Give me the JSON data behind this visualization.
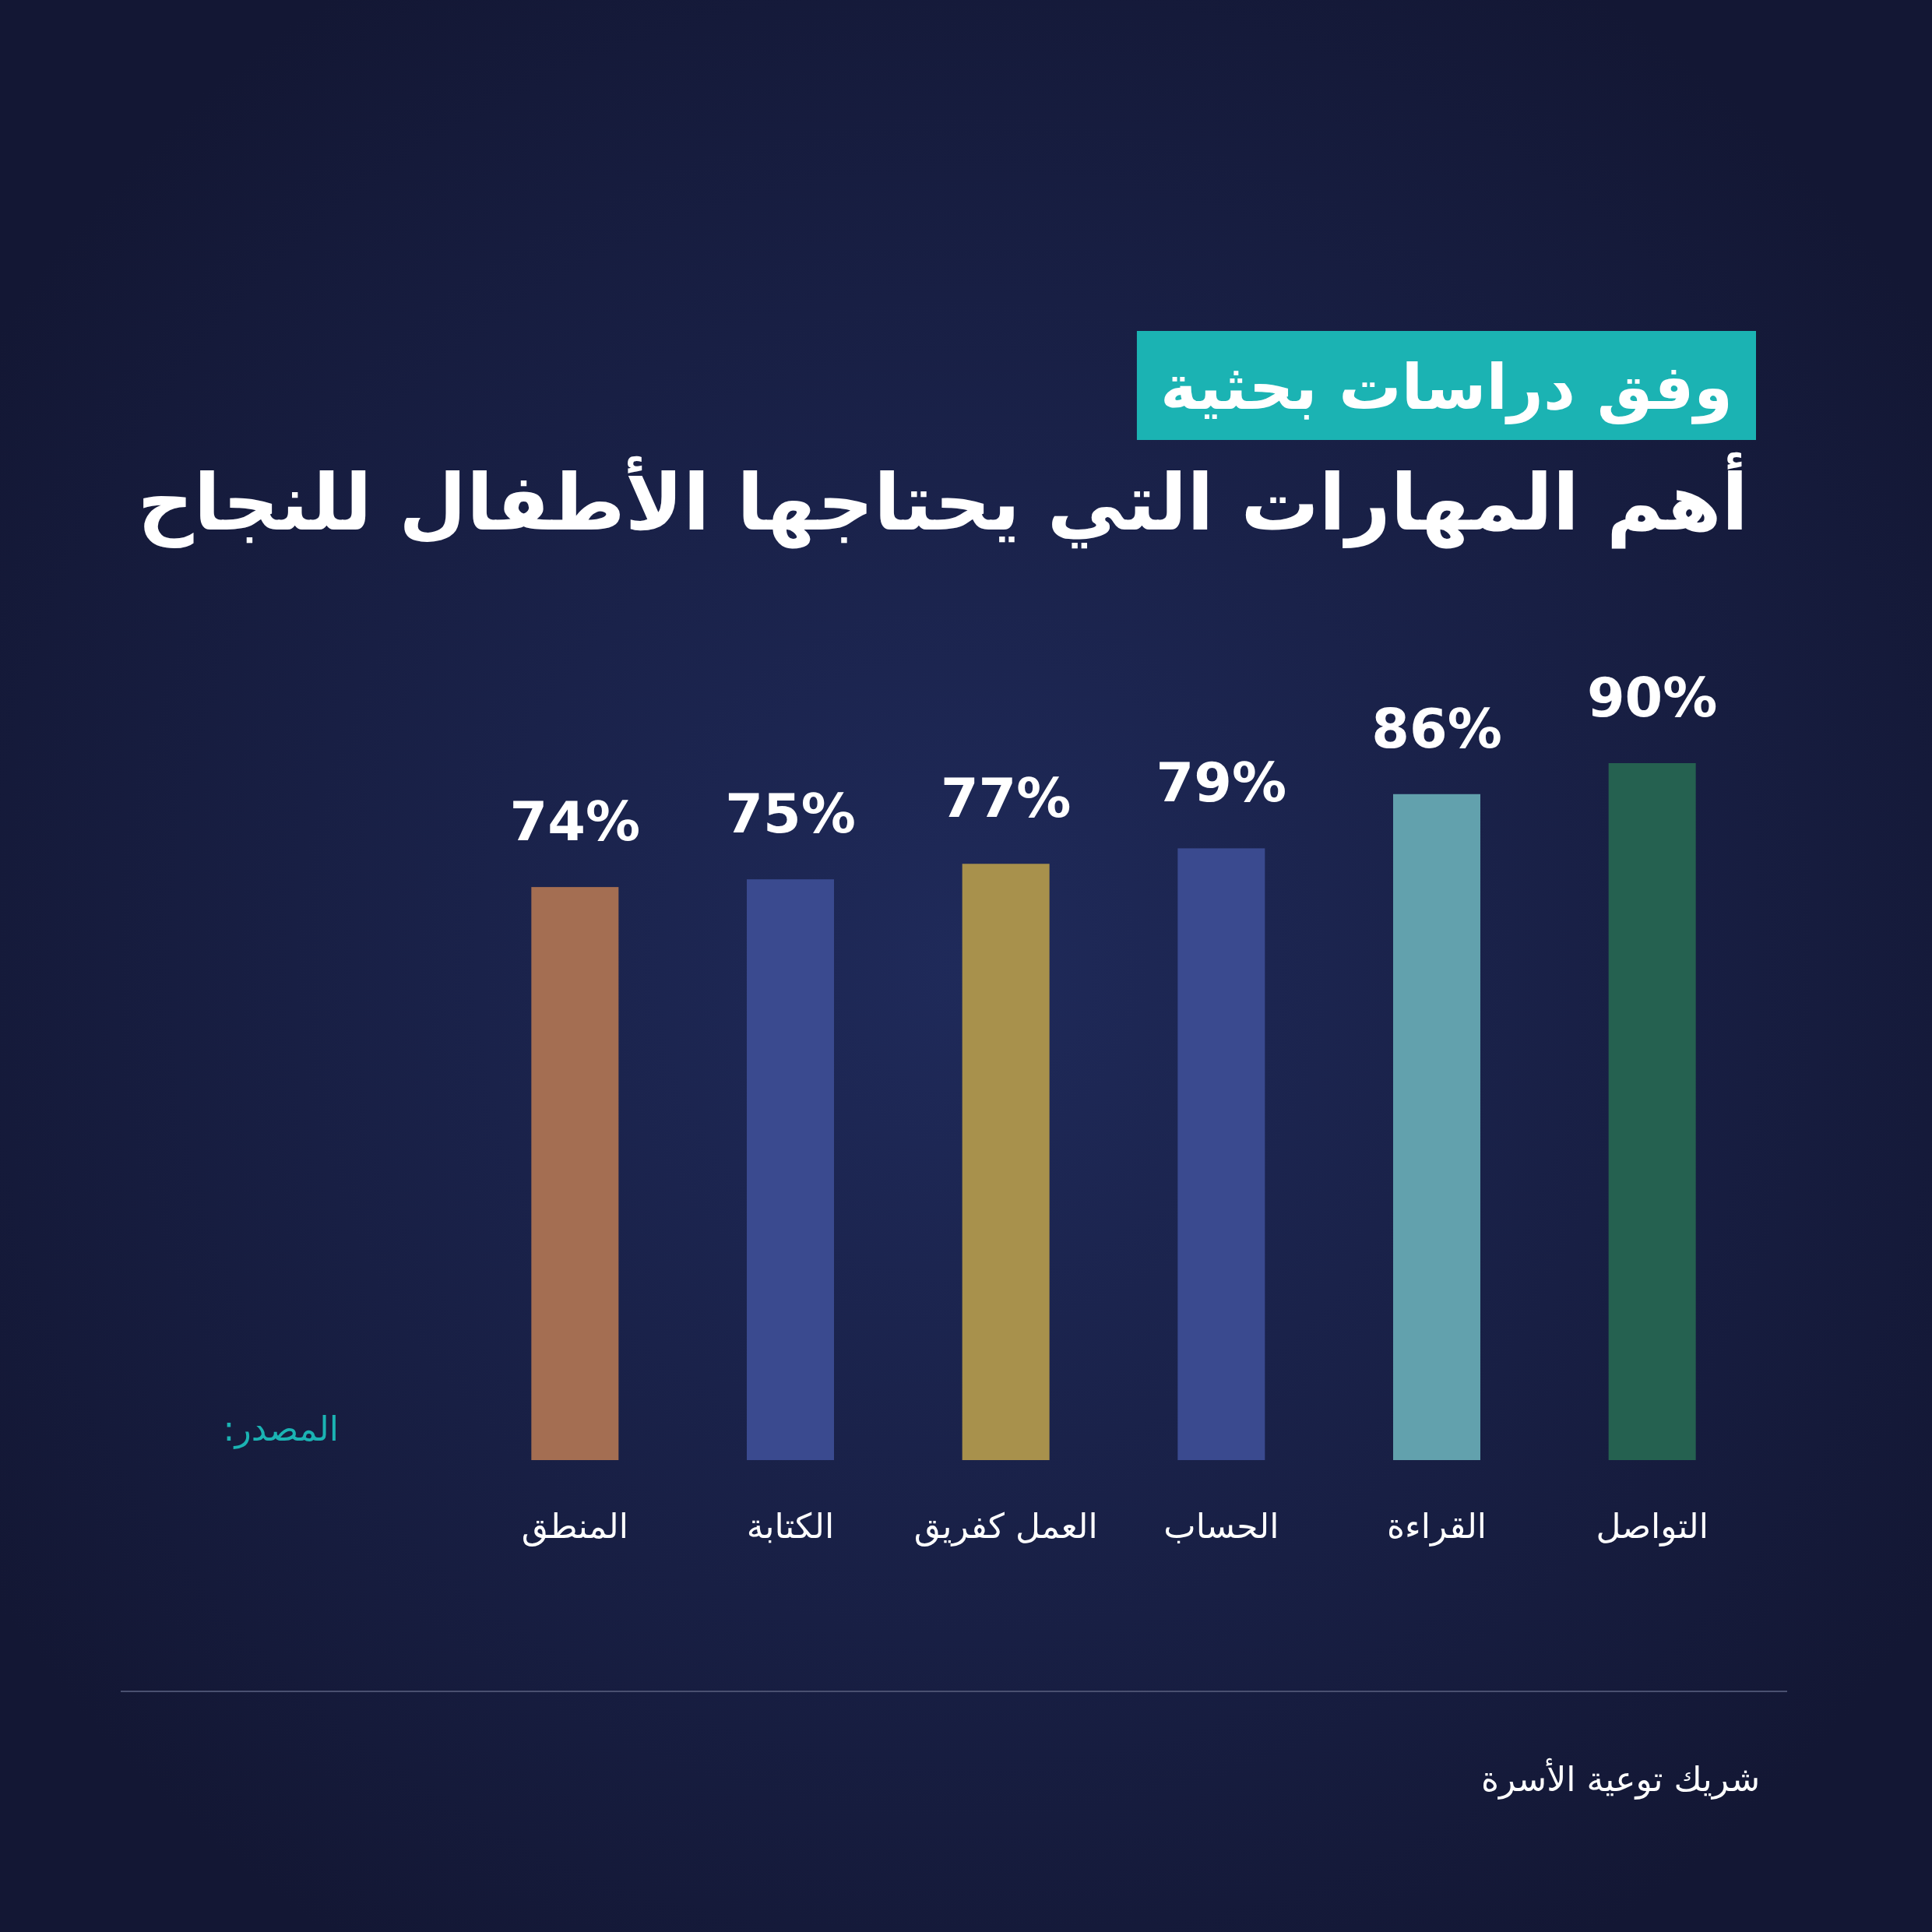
{
  "chart_data": {
    "type": "bar",
    "title": "أهم المهارات التي يحتاجها الأطفال للنجاح",
    "subtitle": "وفق دراسات بحثية",
    "categories": [
      "المنطق",
      "الكتابة",
      "العمل كفريق",
      "الحساب",
      "القراءة",
      "التواصل"
    ],
    "values": [
      74,
      75,
      77,
      79,
      86,
      90
    ],
    "colors": [
      "#a46e52",
      "#3a4a8f",
      "#a8914c",
      "#3a4a8f",
      "#62a1ad",
      "#256150"
    ],
    "value_labels": [
      "74%",
      "75%",
      "77%",
      "79%",
      "86%",
      "90%"
    ],
    "annotations": [
      "المصدر:",
      "شريك توعية الأسرة"
    ]
  }
}
